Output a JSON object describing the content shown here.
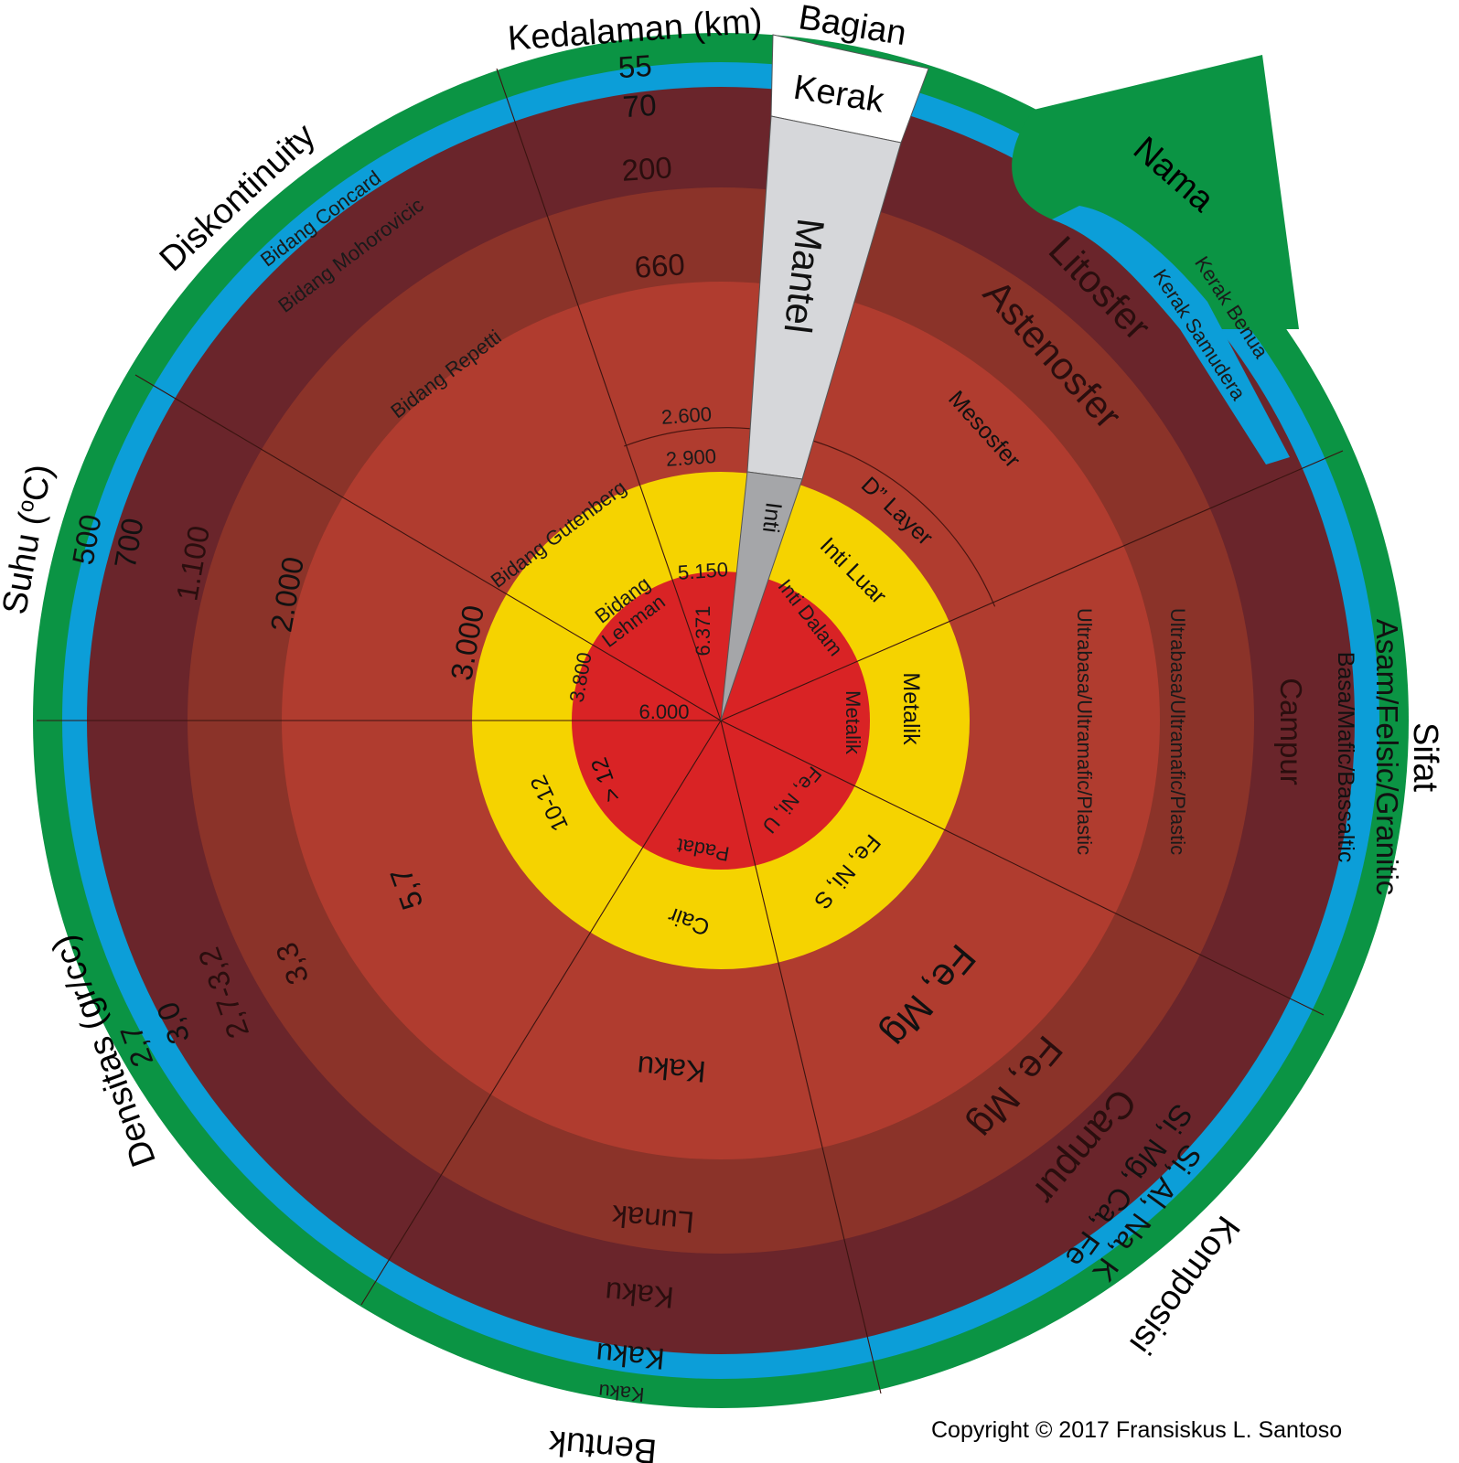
{
  "headings": {
    "depth": "Kedalaman (km)",
    "part": "Bagian",
    "name": "Nama",
    "discontinuity": "Diskontinuity",
    "temperature": "Suhu (",
    "temperature_sup": "o",
    "temperature_end": "C)",
    "property": "Sifat",
    "composition": "Komposisi",
    "density": "Densitas (gr/cc)",
    "form": "Bentuk"
  },
  "depths": {
    "d55": "55",
    "d70": "70",
    "d200": "200",
    "d660": "660",
    "d2600": "2.600",
    "d2900": "2.900",
    "d5150": "5.150",
    "d6371": "6.371"
  },
  "parts": {
    "crust": "Kerak",
    "mantle": "Mantel",
    "core": "Inti"
  },
  "names": {
    "continental_crust": "Kerak Benua",
    "oceanic_crust": "Kerak Samudera",
    "lithosphere": "Litosfer",
    "asthenosphere": "Astenosfer",
    "mesosphere": "Mesosfer",
    "d_layer": "D” Layer",
    "outer_core": "Inti Luar",
    "inner_core": "Inti Dalam"
  },
  "discontinuities": {
    "conrad": "Bidang Concard",
    "moho": "Bidang Mohorovicic",
    "repetti": "Bidang Repetti",
    "gutenberg": "Bidang Gutenberg",
    "lehmann_1": "Bidang",
    "lehmann_2": "Lehman"
  },
  "temperatures": {
    "t500": "500",
    "t700": "700",
    "t1100": "1.100",
    "t2000": "2.000",
    "t3000": "3.000",
    "t3800": "3.800",
    "t6000": "6.000"
  },
  "properties": {
    "continental": "Asam/Felsic/Granitic",
    "oceanic": "Basa/Mafic/Bassaltic",
    "lithosphere": "Campur",
    "asthenosphere": "Ultrabasa/Ultramafic/Plastic",
    "mesosphere": "Ultrabasa/Ultramafic/Plastic",
    "outer_core": "Metalik",
    "inner_core": "Metalik"
  },
  "compositions": {
    "crust": "Si, Al, Na, K",
    "oceanic": "Si, Mg, Ca, Fe",
    "lithosphere": "Campur",
    "asthenosphere": "Fe, Mg",
    "mesosphere": "Fe, Mg",
    "outer_core": "Fe, Ni, S",
    "inner_core": "Fe, Ni, U"
  },
  "forms": {
    "continental": "Kaku",
    "oceanic": "Kaku",
    "lithosphere": "Kaku",
    "asthenosphere": "Lunak",
    "mesosphere": "Kaku",
    "outer_core": "Cair",
    "inner_core": "Padat"
  },
  "densities": {
    "crust": "2,7",
    "oceanic": "3,0",
    "lithosphere": "2,7-3,2",
    "asthenosphere": "3,3",
    "mesosphere": "5,7",
    "outer_core": "10-12",
    "inner_core": "> 12"
  },
  "colors": {
    "continental_crust": "#0b9444",
    "oceanic_crust": "#0c9ed8",
    "lithosphere": "#6a252b",
    "asthenosphere": "#8b3329",
    "mesosphere": "#b03c2f",
    "outer_core": "#f5d300",
    "inner_core": "#d92325",
    "crust_wedge": "#ffffff",
    "mantle_wedge": "#d6d7da",
    "core_wedge": "#a5a6a9"
  },
  "copyright": "Copyright © 2017 Fransiskus L. Santoso"
}
